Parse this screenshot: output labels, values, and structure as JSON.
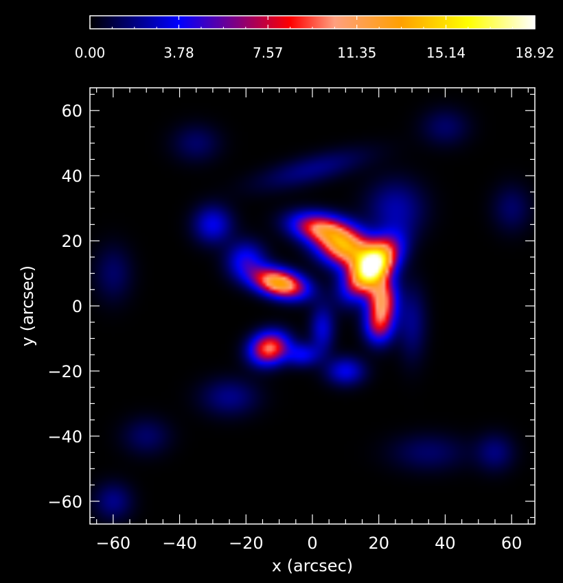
{
  "chart_data": {
    "type": "heatmap",
    "title": "",
    "xlabel": "x (arcsec)",
    "ylabel": "y (arcsec)",
    "xlim": [
      -67,
      67
    ],
    "ylim": [
      -67,
      67
    ],
    "x_ticks": [
      -60,
      -40,
      -20,
      0,
      20,
      40,
      60
    ],
    "y_ticks": [
      -60,
      -40,
      -20,
      0,
      20,
      40,
      60
    ],
    "x_tick_labels": [
      "−60",
      "−40",
      "−20",
      "0",
      "20",
      "40",
      "60"
    ],
    "y_tick_labels": [
      "−60",
      "−40",
      "−20",
      "0",
      "20",
      "40",
      "60"
    ],
    "grid": false,
    "colorbar": {
      "position": "top",
      "min": 0.0,
      "max": 18.92,
      "tick_values": [
        0.0,
        3.78,
        7.57,
        11.35,
        15.14,
        18.92
      ],
      "tick_labels": [
        "0.00",
        "3.78",
        "7.57",
        "11.35",
        "15.14",
        "18.92"
      ],
      "colormap_stops": [
        {
          "v": 0.0,
          "color": "#000000"
        },
        {
          "v": 0.2,
          "color": "#0000ff"
        },
        {
          "v": 0.33,
          "color": "#800080"
        },
        {
          "v": 0.45,
          "color": "#ff0000"
        },
        {
          "v": 0.55,
          "color": "#ffa080"
        },
        {
          "v": 0.7,
          "color": "#ffa000"
        },
        {
          "v": 0.85,
          "color": "#ffff00"
        },
        {
          "v": 1.0,
          "color": "#ffffff"
        }
      ]
    },
    "sources": [
      {
        "x": 18,
        "y": 12,
        "peak": 18.0,
        "sx": 3.5,
        "sy": 6.5,
        "angle": -40
      },
      {
        "x": 10,
        "y": 18,
        "peak": 13.0,
        "sx": 6.0,
        "sy": 4.0,
        "angle": -20
      },
      {
        "x": 2,
        "y": 24,
        "peak": 8.5,
        "sx": 6.0,
        "sy": 3.0,
        "angle": -10
      },
      {
        "x": 21,
        "y": 2,
        "peak": 10.0,
        "sx": 3.0,
        "sy": 5.0,
        "angle": 0
      },
      {
        "x": 20,
        "y": -6,
        "peak": 6.0,
        "sx": 3.0,
        "sy": 4.0,
        "angle": 0
      },
      {
        "x": -10,
        "y": 7,
        "peak": 13.5,
        "sx": 5.5,
        "sy": 2.8,
        "angle": -15
      },
      {
        "x": -20,
        "y": 14,
        "peak": 4.0,
        "sx": 4.0,
        "sy": 4.0,
        "angle": 0
      },
      {
        "x": -13,
        "y": -13,
        "peak": 10.0,
        "sx": 4.0,
        "sy": 3.3,
        "angle": 20
      },
      {
        "x": -3,
        "y": -15,
        "peak": 3.5,
        "sx": 3.5,
        "sy": 2.5,
        "angle": 0
      },
      {
        "x": 3,
        "y": -7,
        "peak": 3.2,
        "sx": 2.5,
        "sy": 5.0,
        "angle": 0
      },
      {
        "x": 10,
        "y": -20,
        "peak": 3.5,
        "sx": 4.0,
        "sy": 3.0,
        "angle": 0
      },
      {
        "x": -30,
        "y": 25,
        "peak": 3.5,
        "sx": 4.0,
        "sy": 4.0,
        "angle": 0
      },
      {
        "x": 0,
        "y": 42,
        "peak": 2.0,
        "sx": 12.0,
        "sy": 3.0,
        "angle": 15
      },
      {
        "x": 25,
        "y": 30,
        "peak": 2.5,
        "sx": 6.0,
        "sy": 6.0,
        "angle": 0
      },
      {
        "x": 30,
        "y": -5,
        "peak": 2.0,
        "sx": 3.0,
        "sy": 8.0,
        "angle": 0
      },
      {
        "x": -25,
        "y": -28,
        "peak": 2.0,
        "sx": 6.0,
        "sy": 4.0,
        "angle": 0
      },
      {
        "x": 35,
        "y": -45,
        "peak": 1.5,
        "sx": 8.0,
        "sy": 4.0,
        "angle": 0
      },
      {
        "x": -35,
        "y": 50,
        "peak": 1.5,
        "sx": 5.0,
        "sy": 4.0,
        "angle": 0
      },
      {
        "x": -60,
        "y": -60,
        "peak": 2.0,
        "sx": 4.0,
        "sy": 4.0,
        "angle": 0
      },
      {
        "x": 55,
        "y": -45,
        "peak": 1.8,
        "sx": 4.0,
        "sy": 4.0,
        "angle": 0
      },
      {
        "x": 60,
        "y": 30,
        "peak": 1.5,
        "sx": 4.0,
        "sy": 5.0,
        "angle": 0
      },
      {
        "x": -60,
        "y": 10,
        "peak": 1.5,
        "sx": 4.0,
        "sy": 6.0,
        "angle": 0
      },
      {
        "x": 40,
        "y": 55,
        "peak": 1.5,
        "sx": 5.0,
        "sy": 4.0,
        "angle": 0
      },
      {
        "x": -50,
        "y": -40,
        "peak": 1.5,
        "sx": 5.0,
        "sy": 4.0,
        "angle": 0
      }
    ]
  }
}
